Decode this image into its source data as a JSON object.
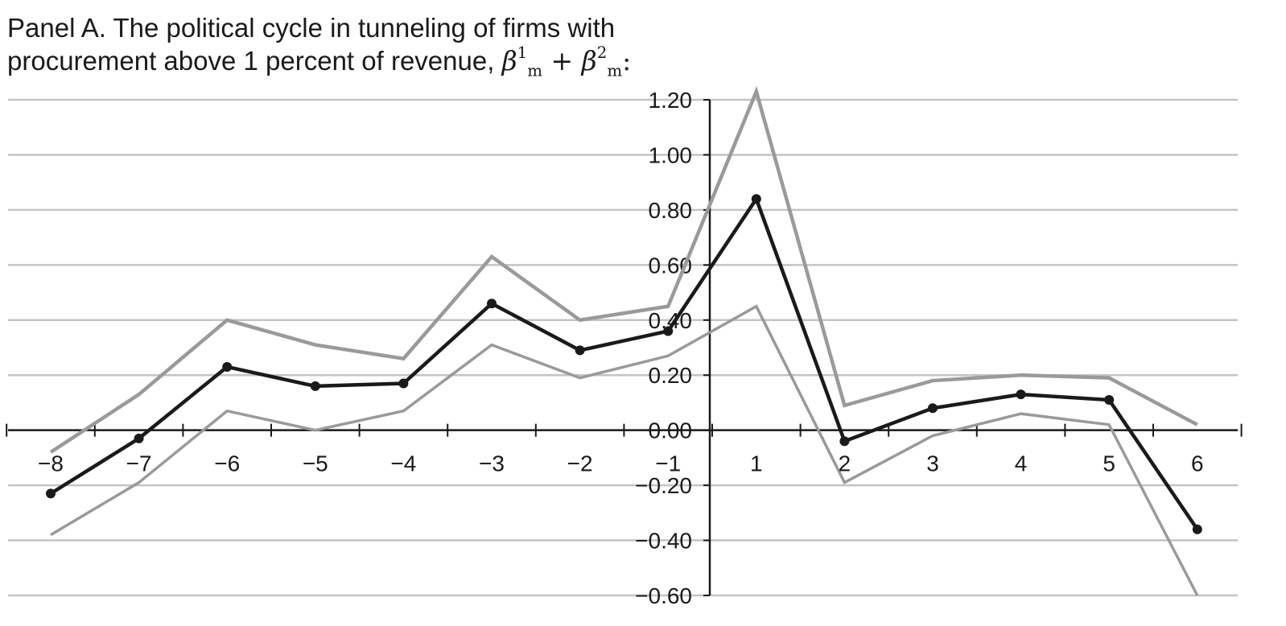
{
  "title": {
    "line1": "Panel A. The political cycle in tunneling of firms with",
    "line2_text": "procurement above 1 percent of revenue,",
    "line2_math": {
      "symbol": "β",
      "sub": "m",
      "sup1": "1",
      "plus": "+",
      "sup2": "2",
      "colon": ":"
    }
  },
  "chart_data": {
    "type": "line",
    "title": "Panel A. The political cycle in tunneling of firms with procurement above 1 percent of revenue, β¹ₘ + β²ₘ:",
    "xlabel": "",
    "ylabel": "",
    "x": [
      -8,
      -7,
      -6,
      -5,
      -4,
      -3,
      -2,
      -1,
      1,
      2,
      3,
      4,
      5,
      6
    ],
    "x_tick_labels": [
      "−8",
      "−7",
      "−6",
      "−5",
      "−4",
      "−3",
      "−2",
      "−1",
      "1",
      "2",
      "3",
      "4",
      "5",
      "6"
    ],
    "y_ticks": [
      1.2,
      1.0,
      0.8,
      0.6,
      0.4,
      0.2,
      0.0,
      -0.2,
      -0.4,
      -0.6
    ],
    "y_tick_labels": [
      "1.20",
      "1.00",
      "0.80",
      "0.60",
      "0.40",
      "0.20",
      "0.00",
      "−0.20",
      "−0.40",
      "−0.60"
    ],
    "ylim": [
      -0.6,
      1.2
    ],
    "grid": true,
    "legend": "none",
    "series": [
      {
        "role": "upper",
        "color": "#9a9a9a",
        "markers": false,
        "values": [
          -0.08,
          0.13,
          0.4,
          0.31,
          0.26,
          0.63,
          0.4,
          0.45,
          1.23,
          0.09,
          0.18,
          0.2,
          0.19,
          0.02
        ]
      },
      {
        "role": "estimate",
        "color": "#1a1a1a",
        "markers": true,
        "values": [
          -0.23,
          -0.03,
          0.23,
          0.16,
          0.17,
          0.46,
          0.29,
          0.36,
          0.84,
          -0.04,
          0.08,
          0.13,
          0.11,
          -0.36
        ]
      },
      {
        "role": "lower",
        "color": "#9a9a9a",
        "markers": false,
        "values": [
          -0.38,
          -0.19,
          0.07,
          0.0,
          0.07,
          0.31,
          0.19,
          0.27,
          0.45,
          -0.19,
          -0.02,
          0.06,
          0.02,
          -0.6
        ]
      }
    ]
  }
}
